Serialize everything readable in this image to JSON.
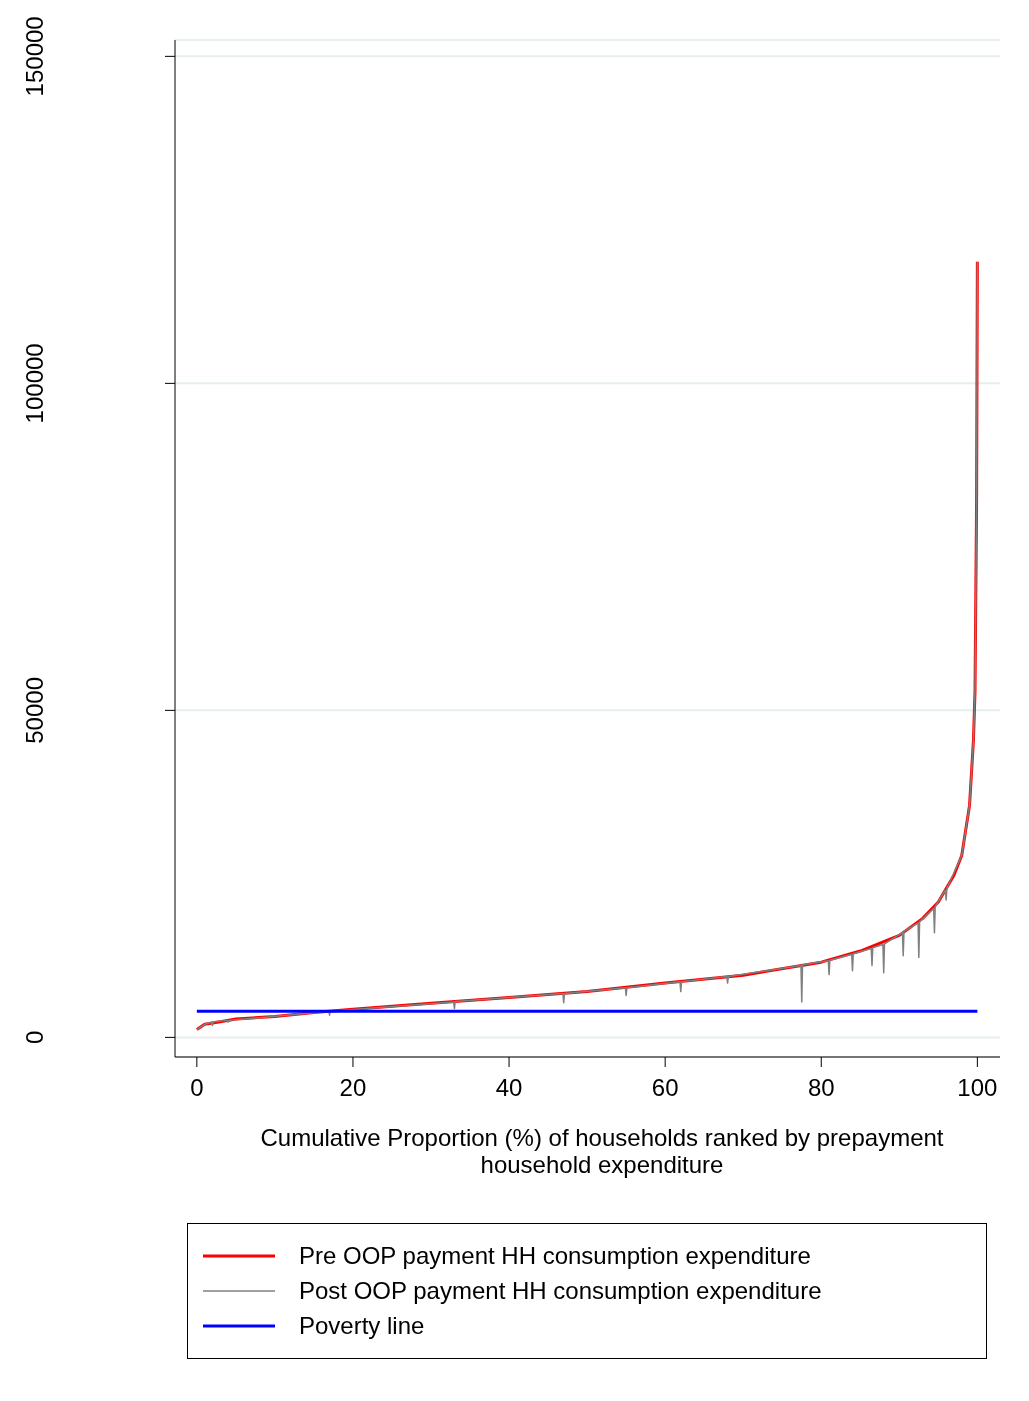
{
  "chart_data": {
    "type": "line",
    "xlabel": "Cumulative Proportion (%) of households ranked by prepayment household expenditure",
    "xlim": [
      -2.8,
      102.9
    ],
    "xticks": [
      0,
      20,
      40,
      60,
      80,
      100
    ],
    "ylim": [
      -3000,
      152500
    ],
    "yticks": [
      0,
      50000,
      100000,
      150000
    ],
    "grid": "y",
    "legend": "bottom",
    "series": [
      {
        "name": "Pre OOP payment HH consumption expenditure",
        "color": "#ff0000",
        "x": [
          0,
          1,
          3,
          5,
          10,
          15,
          20,
          30,
          40,
          50,
          60,
          70,
          80,
          85,
          90,
          93,
          95,
          97,
          98,
          99,
          99.5,
          99.7,
          99.9,
          100
        ],
        "values": [
          1200,
          2000,
          2400,
          2800,
          3200,
          3800,
          4300,
          5200,
          6100,
          7000,
          8300,
          9500,
          11500,
          13200,
          15600,
          18200,
          20700,
          24800,
          27800,
          35500,
          45500,
          53000,
          82000,
          118600
        ]
      },
      {
        "name": "Post OOP payment HH consumption expenditure",
        "color": "#808080",
        "x": [
          0,
          1,
          1.9,
          2,
          2.1,
          3.9,
          4,
          4.1,
          7.9,
          8,
          8.1,
          16.9,
          17,
          17.1,
          32.9,
          33,
          33.1,
          46.9,
          47,
          47.1,
          54.9,
          55,
          55.1,
          61.9,
          62,
          62.1,
          67.9,
          68,
          68.1,
          77.4,
          77.5,
          77.6,
          80.9,
          81,
          81.1,
          83.9,
          84,
          84.1,
          86.4,
          86.5,
          86.6,
          87.9,
          88,
          88.1,
          90.4,
          90.5,
          90.6,
          92.4,
          92.5,
          92.6,
          94.4,
          94.5,
          94.6,
          95.9,
          96,
          96.1,
          98,
          99,
          99.5,
          99.7,
          99.9,
          100
        ],
        "values": [
          1200,
          2000,
          2300,
          1800,
          2400,
          2600,
          2300,
          2600,
          3000,
          2900,
          3000,
          4000,
          3400,
          4000,
          5400,
          4400,
          5500,
          6700,
          5300,
          6700,
          7600,
          6400,
          7600,
          8500,
          7000,
          8500,
          9300,
          8300,
          9300,
          11000,
          5400,
          11100,
          11700,
          9600,
          11800,
          12700,
          10200,
          12800,
          13600,
          11000,
          13700,
          14200,
          9900,
          14300,
          16000,
          12500,
          16200,
          17500,
          12200,
          17700,
          19700,
          16000,
          20000,
          22500,
          21000,
          22800,
          27800,
          35500,
          45500,
          53000,
          82000,
          118600
        ]
      },
      {
        "name": "Poverty line",
        "color": "#0000ff",
        "x": [
          0,
          100
        ],
        "values": [
          4000,
          4000
        ]
      }
    ]
  }
}
